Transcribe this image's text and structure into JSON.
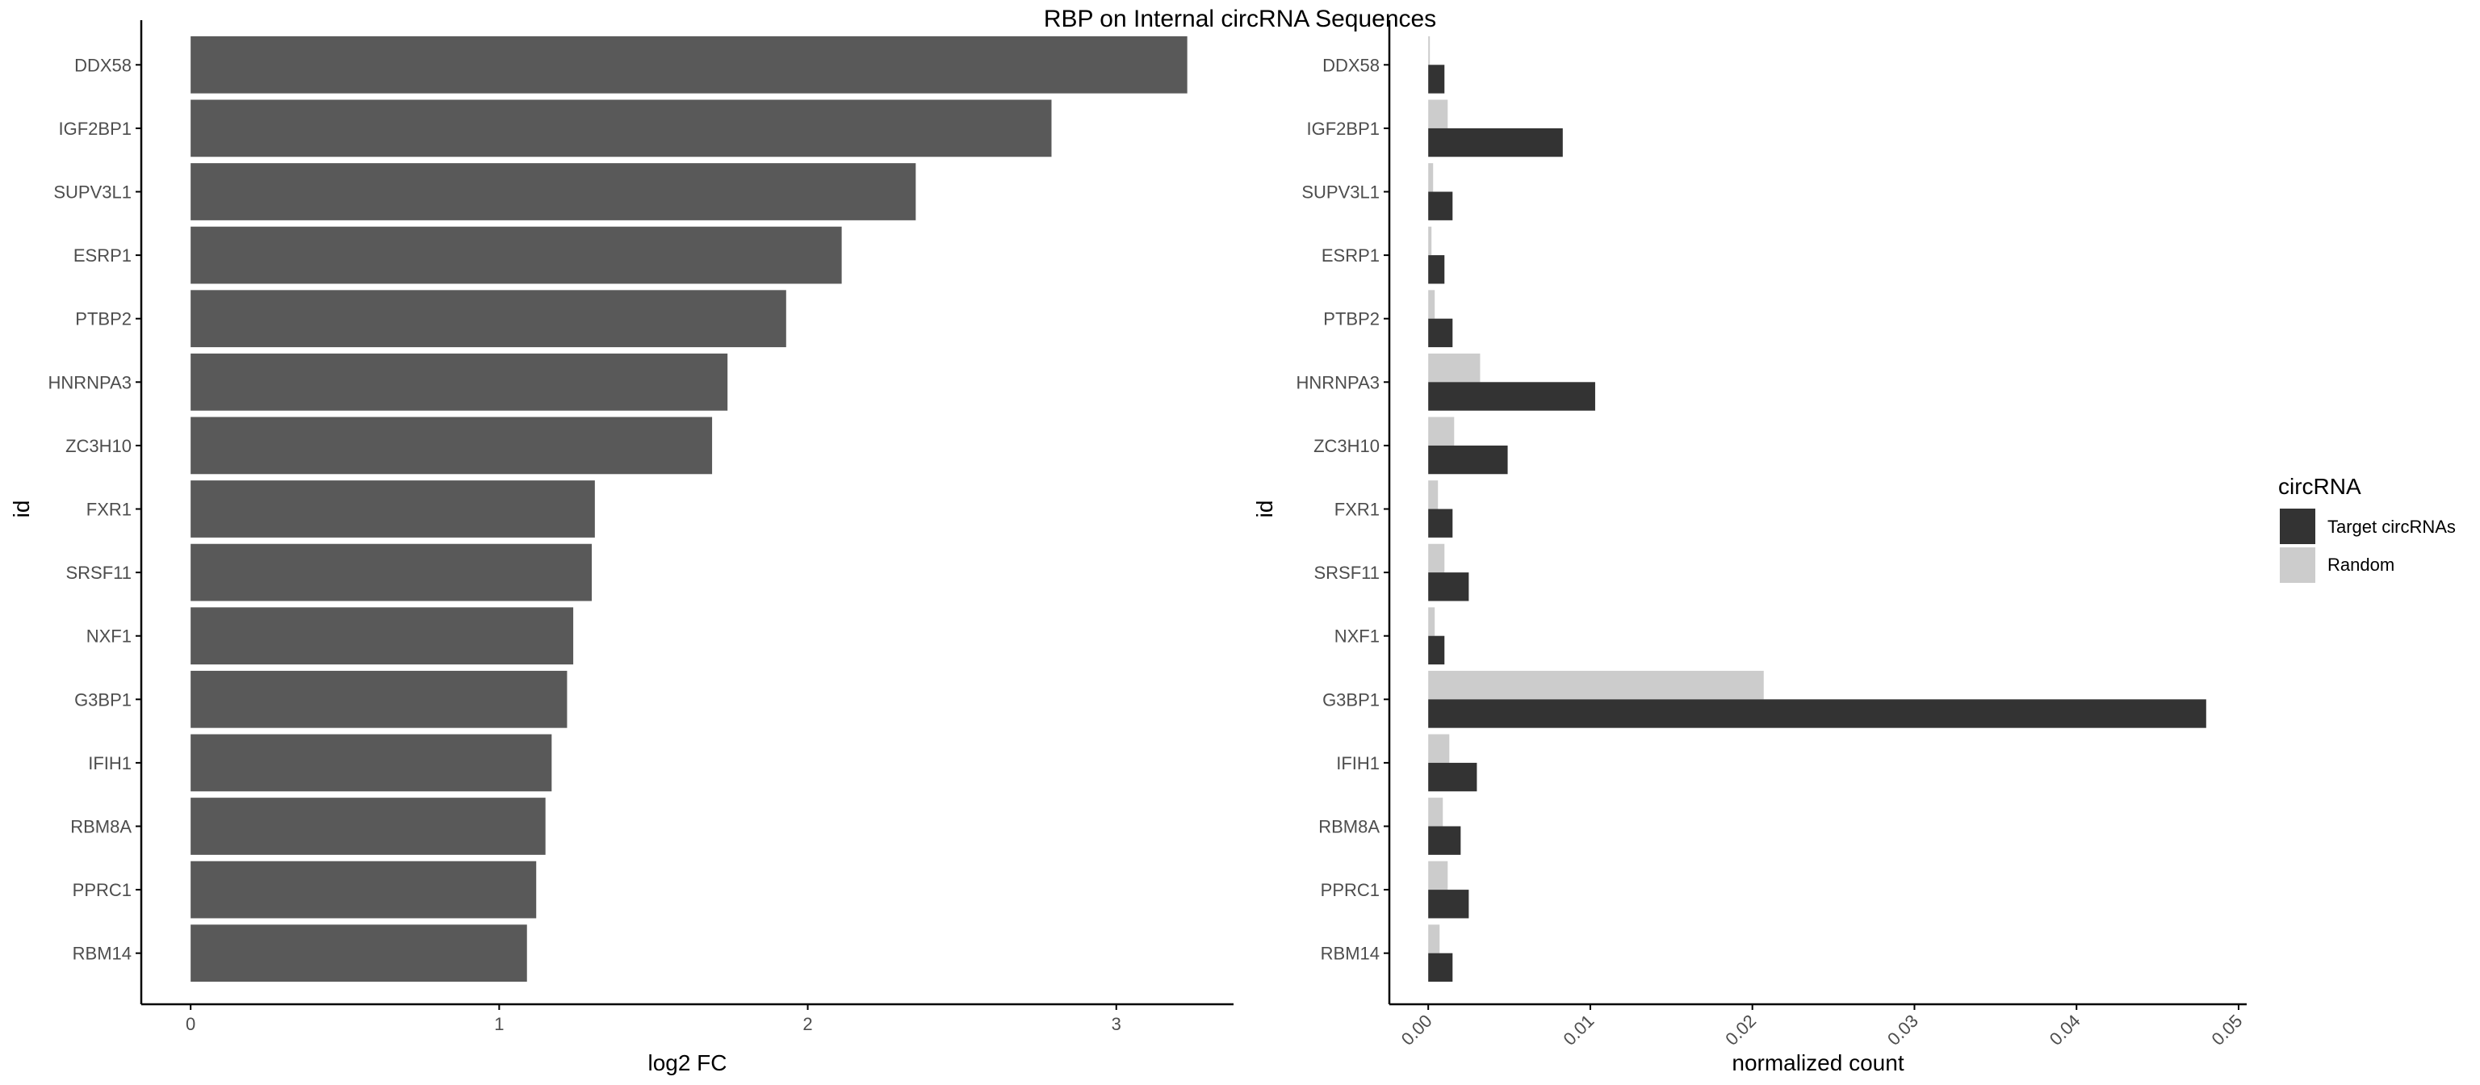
{
  "title": "RBP on Internal circRNA Sequences",
  "colors": {
    "left_bar": "#595959",
    "target": "#333333",
    "random": "#cccccc",
    "axis": "#000000",
    "tick_text": "#4d4d4d"
  },
  "chart_data": [
    {
      "type": "bar",
      "orientation": "horizontal",
      "categories": [
        "DDX58",
        "IGF2BP1",
        "SUPV3L1",
        "ESRP1",
        "PTBP2",
        "HNRNPA3",
        "ZC3H10",
        "FXR1",
        "SRSF11",
        "NXF1",
        "G3BP1",
        "IFIH1",
        "RBM8A",
        "PPRC1",
        "RBM14"
      ],
      "values": [
        3.23,
        2.79,
        2.35,
        2.11,
        1.93,
        1.74,
        1.69,
        1.31,
        1.3,
        1.24,
        1.22,
        1.17,
        1.15,
        1.12,
        1.09
      ],
      "xlabel": "log2 FC",
      "ylabel": "id",
      "xlim": [
        -0.16,
        3.38
      ],
      "xticks": [
        0,
        1,
        2,
        3
      ],
      "xtick_labels": [
        "0",
        "1",
        "2",
        "3"
      ],
      "grid": false
    },
    {
      "type": "bar",
      "orientation": "horizontal",
      "grouped": true,
      "categories": [
        "DDX58",
        "IGF2BP1",
        "SUPV3L1",
        "ESRP1",
        "PTBP2",
        "HNRNPA3",
        "ZC3H10",
        "FXR1",
        "SRSF11",
        "NXF1",
        "G3BP1",
        "IFIH1",
        "RBM8A",
        "PPRC1",
        "RBM14"
      ],
      "series": [
        {
          "name": "Target circRNAs",
          "values": [
            0.001,
            0.0083,
            0.0015,
            0.001,
            0.0015,
            0.0103,
            0.0049,
            0.0015,
            0.0025,
            0.001,
            0.048,
            0.003,
            0.002,
            0.0025,
            0.0015
          ]
        },
        {
          "name": "Random",
          "values": [
            0.0001,
            0.0012,
            0.0003,
            0.0002,
            0.0004,
            0.0032,
            0.0016,
            0.0006,
            0.001,
            0.0004,
            0.0207,
            0.0013,
            0.0009,
            0.0012,
            0.0007
          ]
        }
      ],
      "xlabel": "normalized count",
      "ylabel": "id",
      "xlim": [
        -0.0024,
        0.0505
      ],
      "xticks": [
        0,
        0.01,
        0.02,
        0.03,
        0.04,
        0.05
      ],
      "xtick_labels": [
        "0.00",
        "0.01",
        "0.02",
        "0.03",
        "0.04",
        "0.05"
      ],
      "grid": false,
      "legend": {
        "title": "circRNA",
        "position": "right",
        "entries": [
          "Target circRNAs",
          "Random"
        ]
      }
    }
  ]
}
